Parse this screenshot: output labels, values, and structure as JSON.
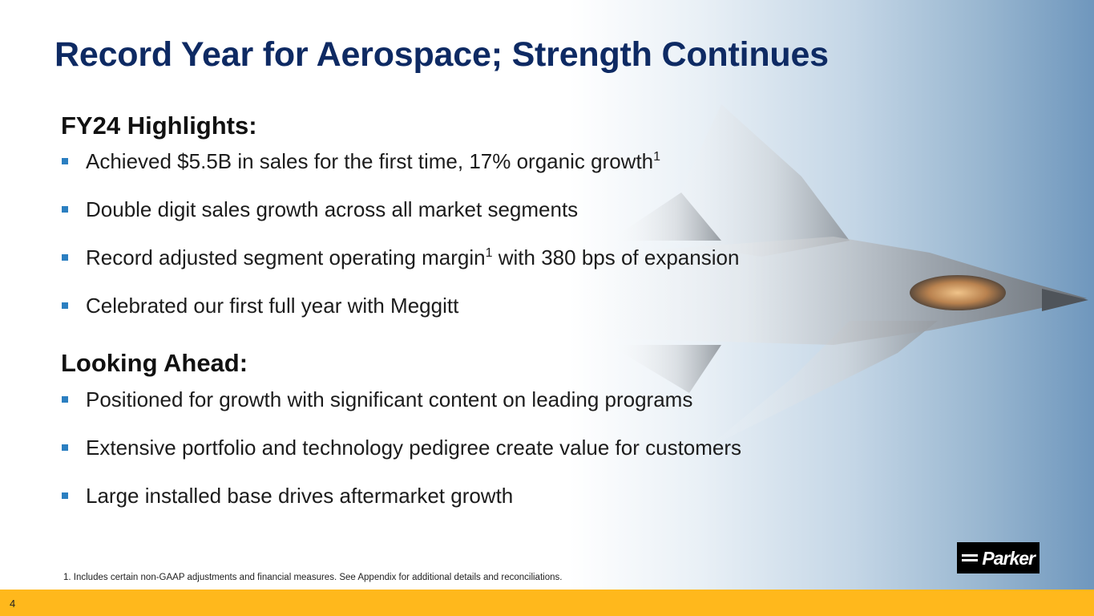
{
  "slide": {
    "title": "Record Year for Aerospace; Strength Continues",
    "page_number": "4"
  },
  "highlights": {
    "heading": "FY24 Highlights:",
    "items": [
      {
        "text": "Achieved $5.5B in sales for the first time, 17% organic growth",
        "sup": "1",
        "after": ""
      },
      {
        "text": "Double digit sales growth across all market segments",
        "sup": "",
        "after": ""
      },
      {
        "text": "Record adjusted segment operating margin",
        "sup": "1",
        "after": " with 380 bps of expansion"
      },
      {
        "text": "Celebrated our first full year with Meggitt",
        "sup": "",
        "after": ""
      }
    ]
  },
  "looking_ahead": {
    "heading": "Looking Ahead:",
    "items": [
      {
        "text": "Positioned for growth with significant content on leading programs"
      },
      {
        "text": "Extensive portfolio and technology pedigree create value for customers"
      },
      {
        "text": "Large installed base drives aftermarket growth"
      }
    ]
  },
  "footnote": "1. Includes certain non-GAAP adjustments and financial measures. See Appendix for additional details and reconciliations.",
  "logo": {
    "text": "Parker"
  },
  "colors": {
    "title": "#0e2a63",
    "bullet_marker": "#2b7fc1",
    "footer_bar": "#ffb81c"
  },
  "background_image": "fighter-jet-photo"
}
